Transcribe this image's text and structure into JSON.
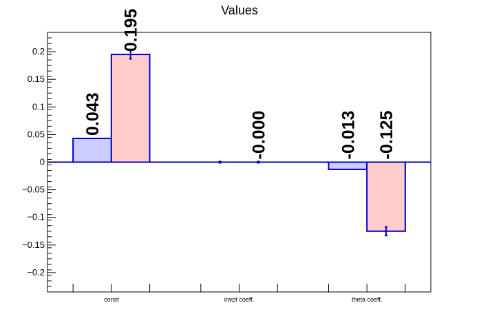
{
  "chart_data": {
    "type": "bar",
    "title": "Values",
    "categories": [
      "const",
      "invpt coeff.",
      "theta coeff."
    ],
    "series": [
      {
        "values": [
          0.043,
          0.0,
          -0.013
        ],
        "errors": [
          0.0,
          0.0,
          0.0
        ],
        "labels": [
          "0.043",
          "",
          "-0.013"
        ],
        "color": "#ccccff"
      },
      {
        "values": [
          0.195,
          0.0,
          -0.125
        ],
        "errors": [
          0.008,
          0.0,
          0.008
        ],
        "labels": [
          "0.195",
          "-0.000",
          "-0.125"
        ],
        "color": "#ffcccc"
      }
    ],
    "ylim": [
      -0.235,
      0.235
    ],
    "yticks": [
      -0.2,
      -0.15,
      -0.1,
      -0.05,
      0,
      0.05,
      0.1,
      0.15,
      0.2
    ],
    "ytick_labels": [
      "−0.2",
      "−0.15",
      "−0.1",
      "−0.05",
      "0",
      "0.05",
      "0.1",
      "0.15",
      "0.2"
    ],
    "xlabel": "",
    "ylabel": "",
    "grid": false,
    "edge_color": "#0000cc"
  }
}
